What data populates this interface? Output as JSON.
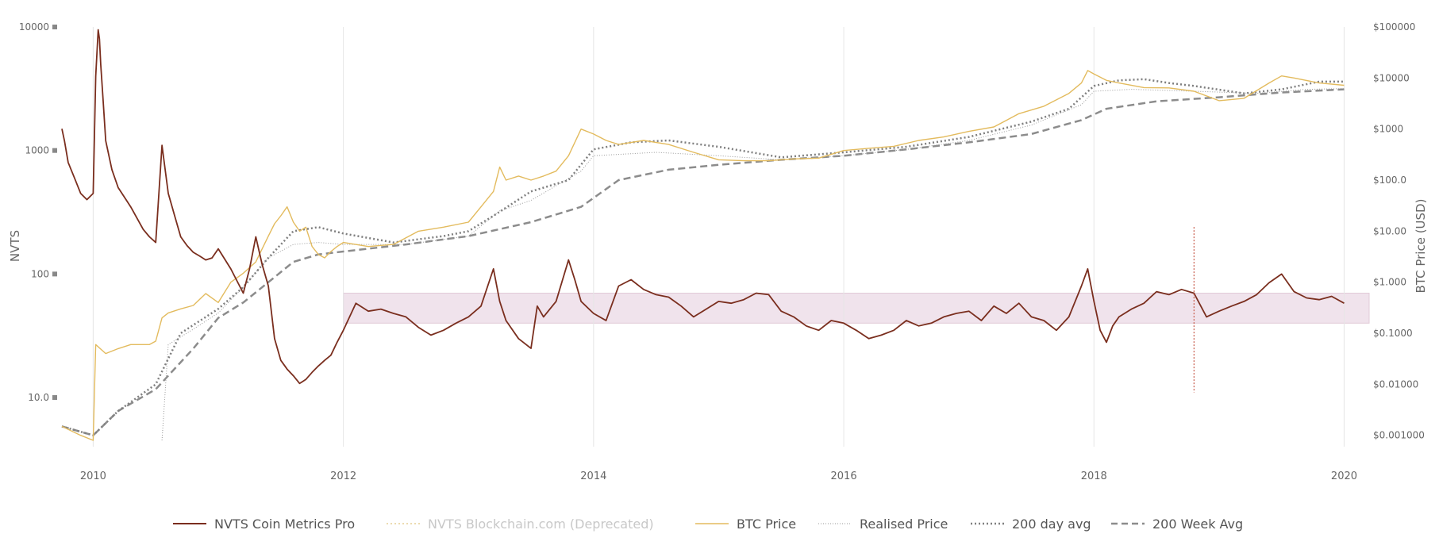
{
  "chart_data": {
    "type": "line",
    "title": "",
    "y_left_label": "NVTS",
    "y_right_label": "BTC Price (USD)",
    "x_ticks": [
      "2010",
      "2012",
      "2014",
      "2016",
      "2018",
      "2020"
    ],
    "y_left_ticks": [
      "10.0",
      "100",
      "1000",
      "10000"
    ],
    "y_right_ticks": [
      "$0.001000",
      "$0.01000",
      "$0.1000",
      "$1.000",
      "$10.00",
      "$100.0",
      "$1000",
      "$10000",
      "$100000"
    ],
    "y_left_scale": "log",
    "y_right_scale": "log",
    "y_left_range": [
      4,
      10000
    ],
    "y_right_range": [
      0.0006,
      100000
    ],
    "x_range": [
      2009.75,
      2020.2
    ],
    "grid": "vertical",
    "legend_position": "bottom",
    "band": {
      "x_start": 2012.0,
      "x_end": 2020.2,
      "y_low": 40,
      "y_high": 70
    },
    "marker_line": {
      "x": 2018.8,
      "y_low": 11,
      "y_high": 240
    },
    "colors": {
      "nvts": "#7a2e1e",
      "btc": "#e3bb5e",
      "realised": "#9a9a9a",
      "avg200d": "#7f7f7f",
      "avg200w": "#8c8c8c",
      "band": "#f0e3ec",
      "band_border": "#e2cbd8",
      "marker": "#c85a4a",
      "deprecated": "#e6cf95"
    },
    "series": [
      {
        "name": "NVTS Coin Metrics Pro",
        "axis": "left",
        "x": [
          2009.75,
          2009.77,
          2009.8,
          2009.85,
          2009.9,
          2009.95,
          2010.0,
          2010.02,
          2010.04,
          2010.05,
          2010.06,
          2010.08,
          2010.1,
          2010.15,
          2010.2,
          2010.3,
          2010.4,
          2010.45,
          2010.5,
          2010.55,
          2010.6,
          2010.65,
          2010.7,
          2010.75,
          2010.8,
          2010.85,
          2010.9,
          2010.95,
          2011.0,
          2011.1,
          2011.2,
          2011.25,
          2011.3,
          2011.35,
          2011.4,
          2011.45,
          2011.5,
          2011.55,
          2011.6,
          2011.65,
          2011.7,
          2011.75,
          2011.8,
          2011.85,
          2011.9,
          2011.95,
          2012.0,
          2012.1,
          2012.2,
          2012.3,
          2012.4,
          2012.5,
          2012.6,
          2012.7,
          2012.8,
          2012.9,
          2013.0,
          2013.1,
          2013.2,
          2013.25,
          2013.3,
          2013.4,
          2013.5,
          2013.55,
          2013.6,
          2013.7,
          2013.8,
          2013.85,
          2013.9,
          2014.0,
          2014.1,
          2014.2,
          2014.3,
          2014.4,
          2014.5,
          2014.6,
          2014.7,
          2014.8,
          2014.9,
          2015.0,
          2015.1,
          2015.2,
          2015.3,
          2015.4,
          2015.5,
          2015.6,
          2015.7,
          2015.8,
          2015.9,
          2016.0,
          2016.1,
          2016.2,
          2016.3,
          2016.4,
          2016.5,
          2016.6,
          2016.7,
          2016.8,
          2016.9,
          2017.0,
          2017.1,
          2017.2,
          2017.3,
          2017.4,
          2017.5,
          2017.6,
          2017.7,
          2017.8,
          2017.9,
          2017.95,
          2018.0,
          2018.05,
          2018.1,
          2018.15,
          2018.2,
          2018.3,
          2018.4,
          2018.5,
          2018.6,
          2018.7,
          2018.8,
          2018.9,
          2019.0,
          2019.1,
          2019.2,
          2019.3,
          2019.4,
          2019.5,
          2019.6,
          2019.7,
          2019.8,
          2019.9,
          2020.0
        ],
        "values": [
          1500,
          1200,
          800,
          600,
          450,
          400,
          450,
          4000,
          9500,
          8000,
          5000,
          2500,
          1200,
          700,
          500,
          350,
          230,
          200,
          180,
          1100,
          450,
          300,
          200,
          170,
          150,
          140,
          130,
          135,
          160,
          110,
          70,
          110,
          200,
          120,
          80,
          30,
          20,
          17,
          15,
          13,
          14,
          16,
          18,
          20,
          22,
          28,
          35,
          58,
          50,
          52,
          48,
          45,
          37,
          32,
          35,
          40,
          45,
          55,
          110,
          60,
          42,
          30,
          25,
          55,
          45,
          60,
          130,
          90,
          60,
          48,
          42,
          80,
          90,
          75,
          68,
          65,
          55,
          45,
          52,
          60,
          58,
          62,
          70,
          68,
          50,
          45,
          38,
          35,
          42,
          40,
          35,
          30,
          32,
          35,
          42,
          38,
          40,
          45,
          48,
          50,
          42,
          55,
          48,
          58,
          45,
          42,
          35,
          45,
          80,
          110,
          60,
          35,
          28,
          38,
          45,
          52,
          58,
          72,
          68,
          75,
          70,
          45,
          50,
          55,
          60,
          68,
          85,
          100,
          72,
          64,
          62,
          66,
          58
        ]
      },
      {
        "name": "NVTS Blockchain.com (Deprecated)",
        "axis": "left",
        "x": [],
        "values": []
      },
      {
        "name": "BTC Price",
        "axis": "right",
        "x": [
          2009.75,
          2009.9,
          2010.0,
          2010.02,
          2010.1,
          2010.2,
          2010.3,
          2010.4,
          2010.45,
          2010.5,
          2010.55,
          2010.6,
          2010.7,
          2010.8,
          2010.9,
          2011.0,
          2011.1,
          2011.2,
          2011.3,
          2011.4,
          2011.45,
          2011.5,
          2011.55,
          2011.6,
          2011.65,
          2011.7,
          2011.75,
          2011.8,
          2011.85,
          2011.9,
          2011.95,
          2012.0,
          2012.2,
          2012.4,
          2012.6,
          2012.8,
          2013.0,
          2013.1,
          2013.2,
          2013.25,
          2013.3,
          2013.4,
          2013.5,
          2013.6,
          2013.7,
          2013.8,
          2013.9,
          2014.0,
          2014.1,
          2014.2,
          2014.4,
          2014.6,
          2014.8,
          2015.0,
          2015.2,
          2015.4,
          2015.6,
          2015.8,
          2016.0,
          2016.2,
          2016.4,
          2016.6,
          2016.8,
          2017.0,
          2017.2,
          2017.4,
          2017.6,
          2017.8,
          2017.9,
          2017.95,
          2018.0,
          2018.1,
          2018.2,
          2018.4,
          2018.6,
          2018.8,
          2019.0,
          2019.2,
          2019.4,
          2019.5,
          2019.6,
          2019.8,
          2020.0
        ],
        "values": [
          0.0015,
          0.001,
          0.0008,
          0.06,
          0.04,
          0.05,
          0.06,
          0.06,
          0.06,
          0.07,
          0.2,
          0.25,
          0.3,
          0.35,
          0.6,
          0.4,
          1.0,
          1.5,
          2.5,
          8.0,
          14.0,
          20.0,
          30.0,
          15.0,
          10.0,
          12.0,
          5.0,
          3.5,
          3.0,
          4.0,
          5.0,
          6.0,
          5.0,
          5.5,
          10.0,
          12.0,
          15.0,
          30.0,
          60.0,
          180.0,
          100.0,
          120.0,
          100.0,
          120.0,
          150.0,
          300.0,
          1000.0,
          800.0,
          600.0,
          500.0,
          600.0,
          500.0,
          350.0,
          250.0,
          240.0,
          240.0,
          260.0,
          270.0,
          380.0,
          420.0,
          460.0,
          600.0,
          700.0,
          900.0,
          1100.0,
          2000.0,
          2800.0,
          5000.0,
          8000.0,
          14000.0,
          12000.0,
          9000.0,
          8000.0,
          6500.0,
          6400.0,
          5500.0,
          3600.0,
          4000.0,
          8000.0,
          11000.0,
          10000.0,
          8000.0,
          7200.0
        ]
      },
      {
        "name": "Realised Price",
        "axis": "right",
        "x": [
          2010.55,
          2010.6,
          2010.8,
          2011.0,
          2011.2,
          2011.4,
          2011.6,
          2011.8,
          2012.0,
          2012.5,
          2013.0,
          2013.25,
          2013.5,
          2013.9,
          2014.0,
          2014.5,
          2015.0,
          2015.5,
          2016.0,
          2016.5,
          2017.0,
          2017.5,
          2017.9,
          2018.0,
          2018.3,
          2018.8,
          2019.3,
          2019.7,
          2020.0
        ],
        "values": [
          0.0008,
          0.06,
          0.12,
          0.25,
          0.8,
          3.0,
          5.5,
          6.0,
          5.5,
          5.5,
          8.0,
          25.0,
          40.0,
          150.0,
          300.0,
          350.0,
          300.0,
          250.0,
          300.0,
          400.0,
          600.0,
          1200.0,
          3000.0,
          5500.0,
          6000.0,
          5500.0,
          5000.0,
          6000.0,
          6200.0
        ]
      },
      {
        "name": "200 day avg",
        "axis": "right",
        "x": [
          2009.75,
          2010.0,
          2010.2,
          2010.5,
          2010.7,
          2011.0,
          2011.2,
          2011.4,
          2011.6,
          2011.8,
          2012.0,
          2012.4,
          2012.8,
          2013.0,
          2013.2,
          2013.5,
          2013.8,
          2014.0,
          2014.3,
          2014.6,
          2015.0,
          2015.5,
          2016.0,
          2016.5,
          2017.0,
          2017.5,
          2017.8,
          2018.0,
          2018.2,
          2018.4,
          2018.6,
          2018.8,
          2019.2,
          2019.5,
          2019.8,
          2020.0
        ],
        "values": [
          0.0015,
          0.001,
          0.003,
          0.01,
          0.1,
          0.3,
          0.8,
          3.0,
          10.0,
          12.0,
          9.0,
          6.0,
          8.0,
          10.0,
          20.0,
          60.0,
          100.0,
          400.0,
          550.0,
          600.0,
          450.0,
          280.0,
          350.0,
          450.0,
          700.0,
          1400.0,
          2500.0,
          7000.0,
          9000.0,
          9500.0,
          8000.0,
          7000.0,
          5000.0,
          6000.0,
          8500.0,
          8500.0
        ]
      },
      {
        "name": "200 Week Avg",
        "axis": "right",
        "x": [
          2009.75,
          2010.0,
          2010.2,
          2010.5,
          2010.8,
          2011.0,
          2011.2,
          2011.4,
          2011.6,
          2011.8,
          2012.0,
          2012.5,
          2013.0,
          2013.5,
          2013.9,
          2014.2,
          2014.6,
          2015.0,
          2015.5,
          2016.0,
          2016.5,
          2017.0,
          2017.5,
          2017.9,
          2018.1,
          2018.5,
          2019.0,
          2019.5,
          2020.0
        ],
        "values": [
          0.0015,
          0.001,
          0.003,
          0.008,
          0.05,
          0.2,
          0.4,
          1.0,
          2.5,
          3.5,
          4.0,
          5.5,
          8.0,
          15.0,
          30.0,
          100.0,
          160.0,
          200.0,
          250.0,
          300.0,
          400.0,
          550.0,
          800.0,
          1500.0,
          2500.0,
          3500.0,
          4200.0,
          5200.0,
          6000.0
        ]
      }
    ]
  }
}
